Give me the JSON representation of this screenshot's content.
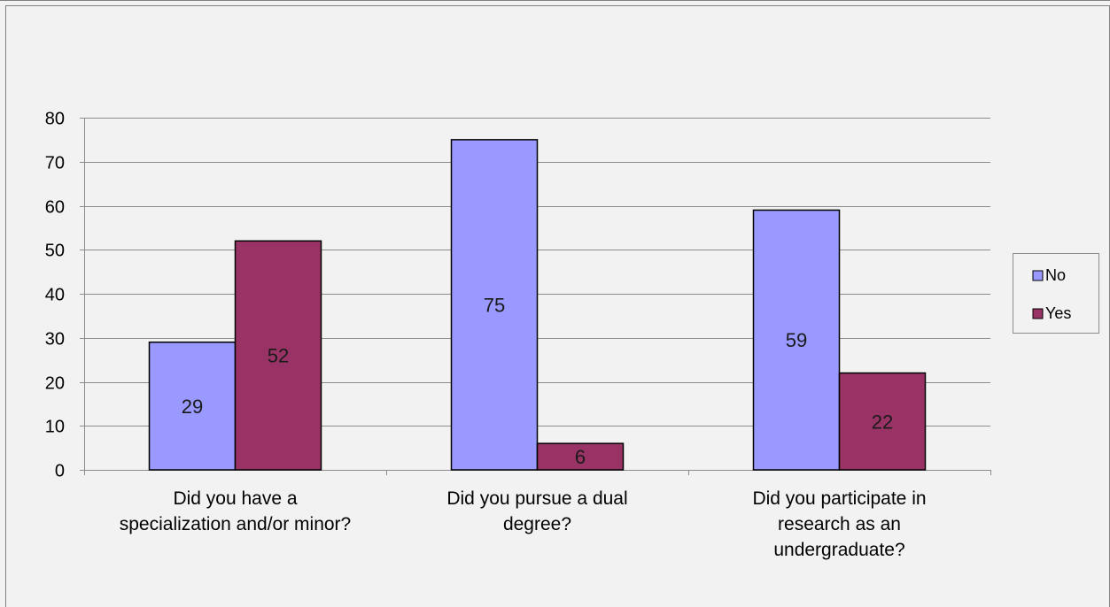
{
  "chart_data": {
    "type": "bar",
    "categories": [
      [
        "Did you have a",
        "specialization and/or minor?"
      ],
      [
        "Did you pursue a dual",
        "degree?"
      ],
      [
        "Did you participate in",
        "research as an",
        "undergraduate?"
      ]
    ],
    "series": [
      {
        "name": "No",
        "values": [
          29,
          75,
          59
        ],
        "color": "#9999ff"
      },
      {
        "name": "Yes",
        "values": [
          52,
          6,
          22
        ],
        "color": "#993366"
      }
    ],
    "ylim": [
      0,
      80
    ],
    "yticks": [
      0,
      10,
      20,
      30,
      40,
      50,
      60,
      70,
      80
    ],
    "grid": true,
    "legend_position": "right",
    "data_labels": true,
    "title": "",
    "xlabel": "",
    "ylabel": ""
  }
}
